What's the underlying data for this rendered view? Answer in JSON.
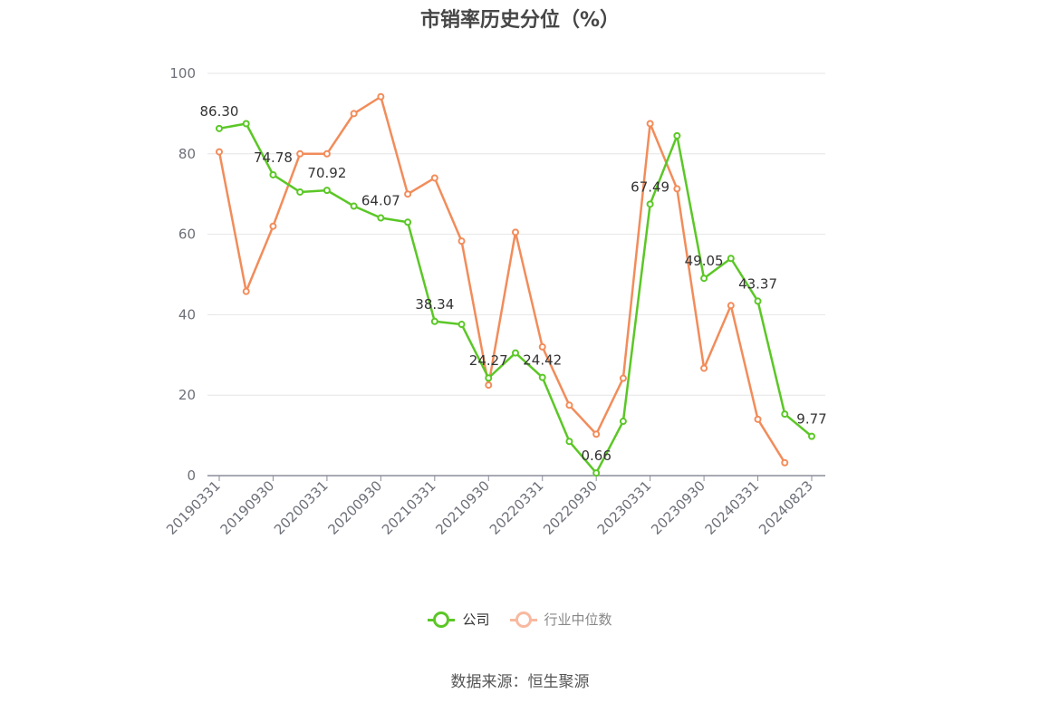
{
  "title": "市销率历史分位（%）",
  "source": "数据来源：恒生聚源",
  "colors": {
    "company": "#5bc726",
    "industry": "#f28c5a",
    "industry_legend": "#f8b9a0",
    "grid": "#e6e6e6",
    "axis": "#8a8d99"
  },
  "legend": {
    "company": "公司",
    "industry": "行业中位数"
  },
  "chart_data": {
    "type": "line",
    "title": "市销率历史分位（%）",
    "ylim": [
      0,
      100
    ],
    "yticks": [
      "0",
      "20",
      "40",
      "60",
      "80",
      "100"
    ],
    "x_tick_labels": [
      "20190331",
      "20190930",
      "20200331",
      "20200930",
      "20210331",
      "20210930",
      "20220331",
      "20220930",
      "20230331",
      "20230930",
      "20240331",
      "20240823"
    ],
    "grid": true,
    "legend_position": "bottom",
    "series": [
      {
        "name": "公司",
        "values": [
          86.3,
          87.5,
          74.78,
          70.5,
          70.92,
          67.0,
          64.07,
          63.0,
          38.34,
          37.6,
          24.27,
          30.5,
          24.42,
          8.5,
          0.66,
          13.5,
          67.49,
          84.5,
          49.05,
          54.0,
          43.37,
          15.3,
          9.77
        ],
        "labels": [
          "86.30",
          "",
          "74.78",
          "",
          "70.92",
          "",
          "64.07",
          "",
          "38.34",
          "",
          "24.27",
          "",
          "24.42",
          "",
          "0.66",
          "",
          "67.49",
          "",
          "49.05",
          "",
          "43.37",
          "",
          "9.77"
        ]
      },
      {
        "name": "行业中位数",
        "values": [
          80.5,
          45.8,
          62.0,
          80.0,
          80.0,
          90.0,
          94.2,
          70.0,
          74.0,
          58.3,
          22.5,
          60.5,
          32.0,
          17.5,
          10.3,
          24.2,
          87.5,
          71.3,
          26.7,
          42.3,
          14.0,
          3.2,
          null
        ]
      }
    ]
  }
}
